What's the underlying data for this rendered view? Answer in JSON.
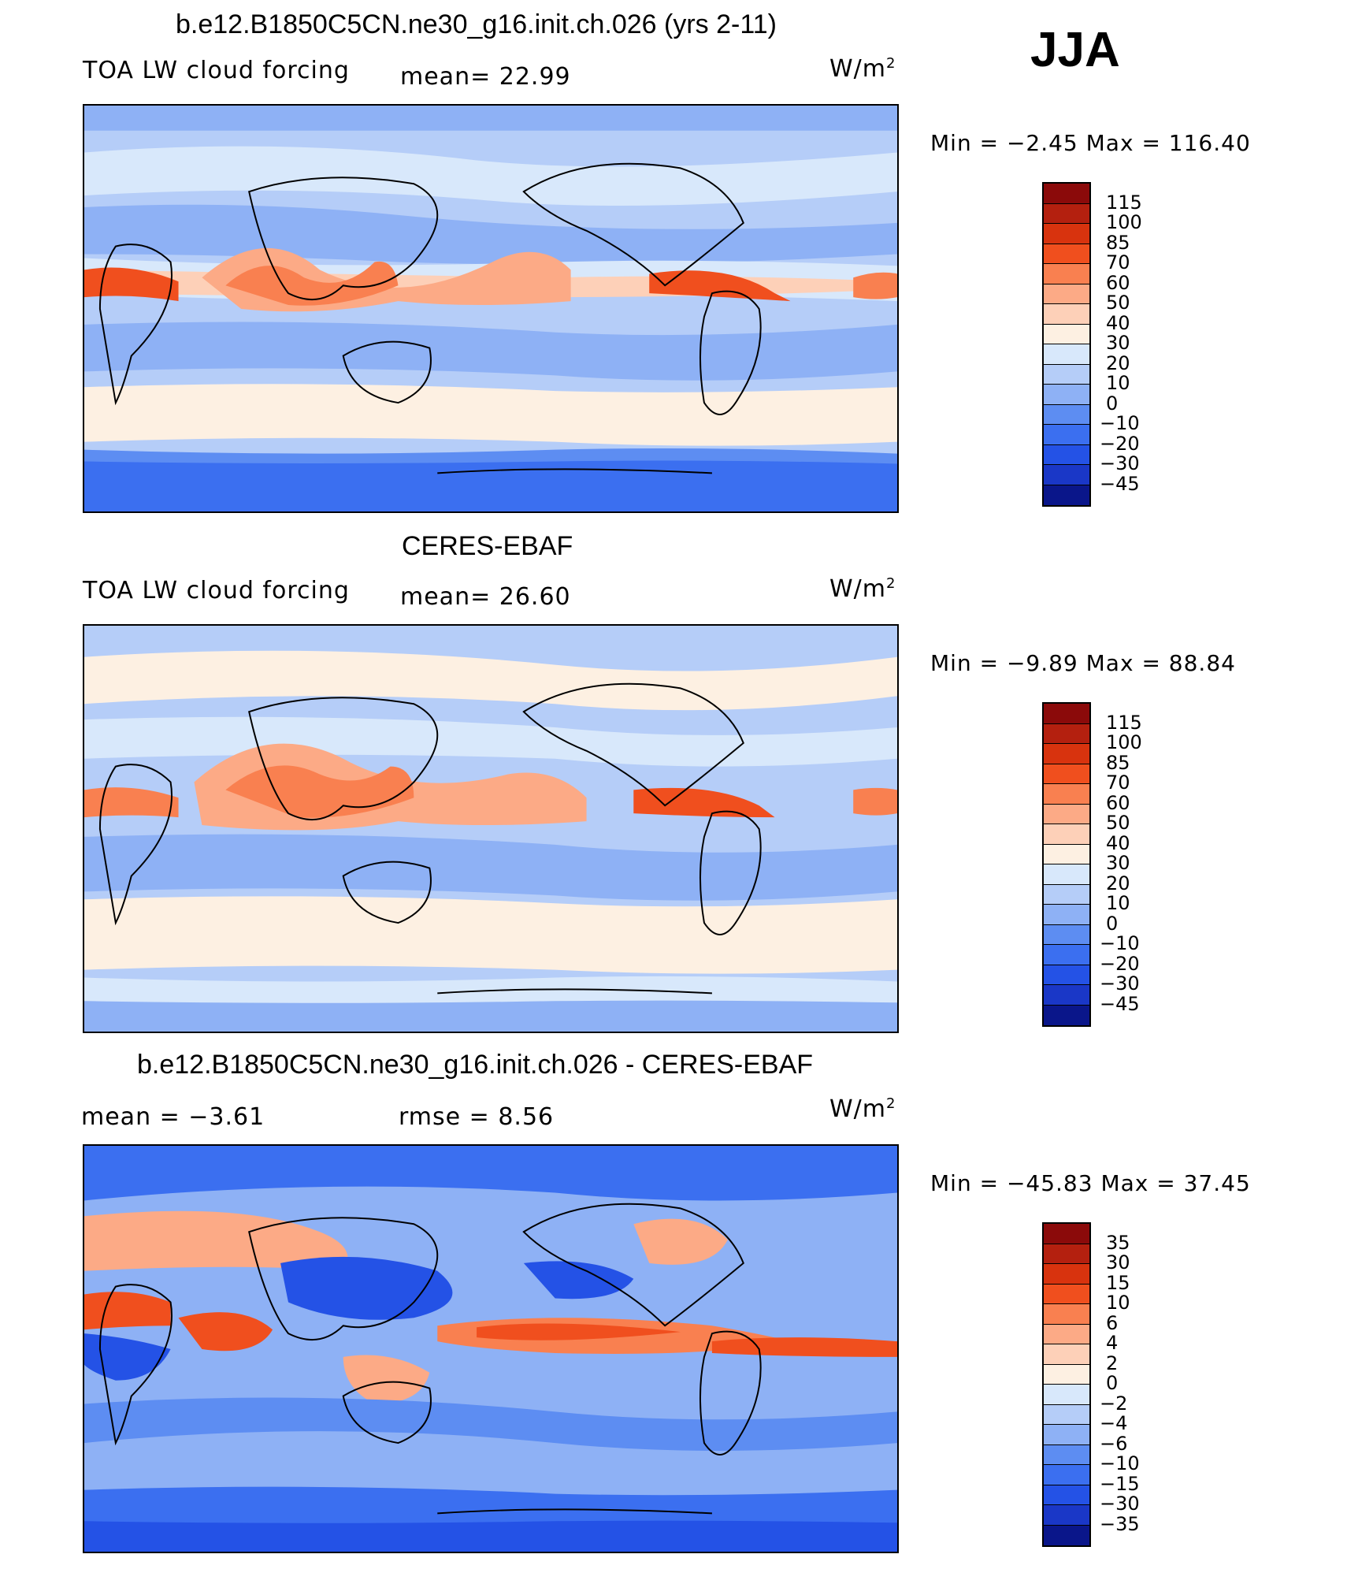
{
  "season": "JJA",
  "panels": [
    {
      "title": "b.e12.B1850C5CN.ne30_g16.init.ch.026 (yrs 2-11)",
      "left_label": "TOA LW cloud forcing",
      "center_label": "mean=   22.99",
      "units": "W/m",
      "units_sup": "2",
      "minmax": "Min =   −2.45 Max =  116.40",
      "colorbar": {
        "levels": [
          "115",
          "100",
          "85",
          "70",
          "60",
          "50",
          "40",
          "30",
          "20",
          "10",
          "0",
          "−10",
          "−20",
          "−30",
          "−45"
        ],
        "colors": [
          "#8b0a0a",
          "#b4200f",
          "#d8330e",
          "#f04f1e",
          "#f98050",
          "#fcaa86",
          "#fdd0b8",
          "#fdf0e2",
          "#d8e8fb",
          "#b5cdf8",
          "#8eb1f5",
          "#5d8df2",
          "#3b6ff0",
          "#2452e6",
          "#1a37c7",
          "#0a168a"
        ]
      }
    },
    {
      "title": "CERES-EBAF",
      "left_label": "TOA LW cloud forcing",
      "center_label": "mean=   26.60",
      "units": "W/m",
      "units_sup": "2",
      "minmax": "Min =   −9.89 Max =   88.84",
      "colorbar": {
        "levels": [
          "115",
          "100",
          "85",
          "70",
          "60",
          "50",
          "40",
          "30",
          "20",
          "10",
          "0",
          "−10",
          "−20",
          "−30",
          "−45"
        ],
        "colors": [
          "#8b0a0a",
          "#b4200f",
          "#d8330e",
          "#f04f1e",
          "#f98050",
          "#fcaa86",
          "#fdd0b8",
          "#fdf0e2",
          "#d8e8fb",
          "#b5cdf8",
          "#8eb1f5",
          "#5d8df2",
          "#3b6ff0",
          "#2452e6",
          "#1a37c7",
          "#0a168a"
        ]
      }
    },
    {
      "title": "b.e12.B1850C5CN.ne30_g16.init.ch.026 - CERES-EBAF",
      "left_label": "mean =   −3.61",
      "center_label": "rmse =    8.56",
      "units": "W/m",
      "units_sup": "2",
      "minmax": "Min = −45.83 Max =   37.45",
      "colorbar": {
        "levels": [
          "35",
          "30",
          "15",
          "10",
          "6",
          "4",
          "2",
          "0",
          "−2",
          "−4",
          "−6",
          "−10",
          "−15",
          "−30",
          "−35"
        ],
        "colors": [
          "#8b0a0a",
          "#b4200f",
          "#d8330e",
          "#f04f1e",
          "#f98050",
          "#fcaa86",
          "#fdd0b8",
          "#fdf0e2",
          "#d8e8fb",
          "#b5cdf8",
          "#8eb1f5",
          "#5d8df2",
          "#3b6ff0",
          "#2452e6",
          "#1a37c7",
          "#0a168a"
        ]
      }
    }
  ]
}
